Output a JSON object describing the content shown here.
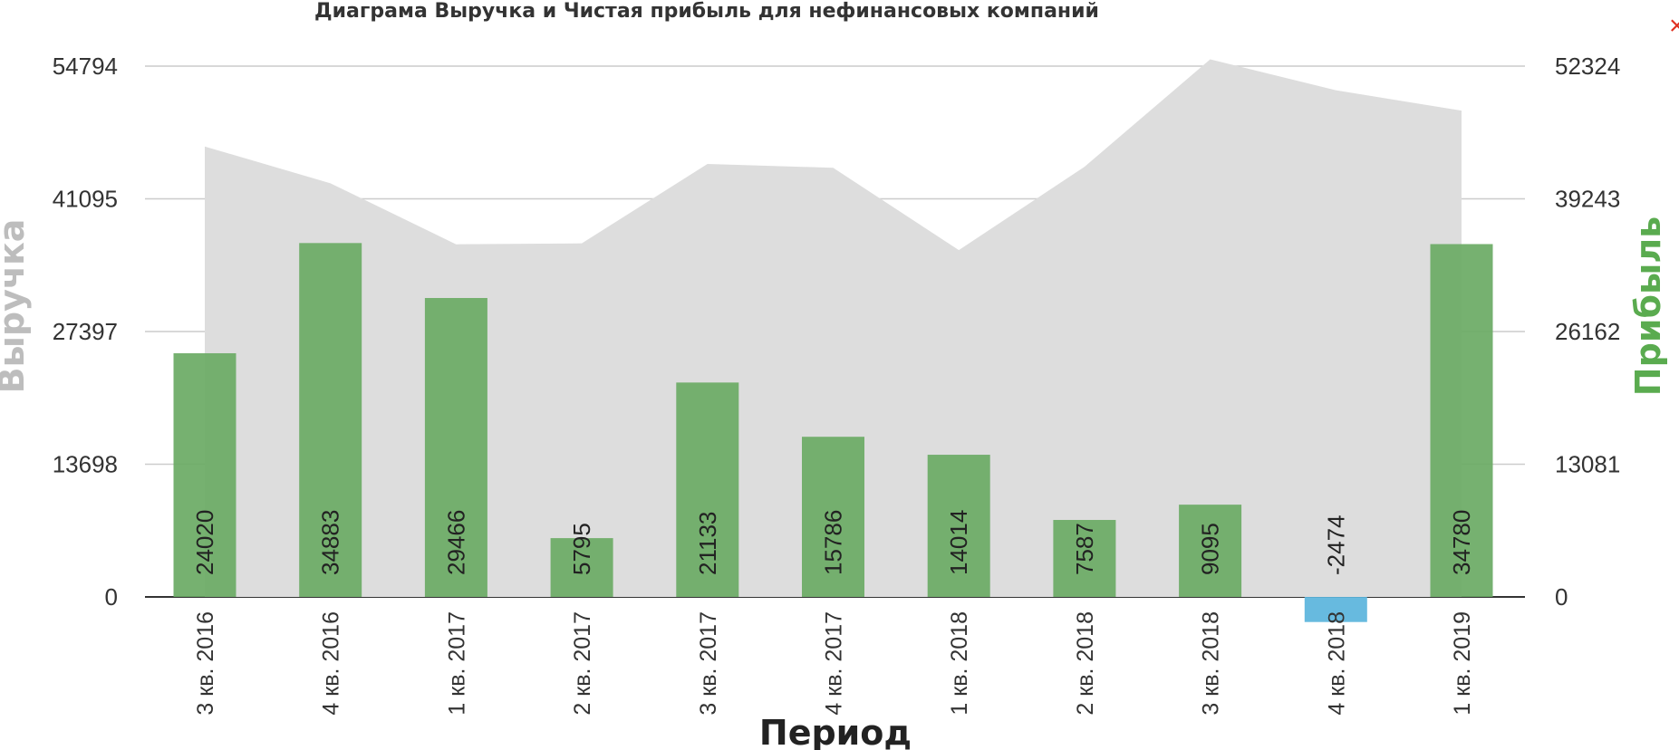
{
  "chart_data": {
    "type": "bar",
    "title": "Диаграма Выручка и Чистая прибыль для нефинансовых компаний",
    "xlabel": "Период",
    "ylabel_left": "Выручка",
    "ylabel_right": "Прибыль",
    "categories": [
      "3 кв. 2016",
      "4 кв. 2016",
      "1 кв. 2017",
      "2 кв. 2017",
      "3 кв. 2017",
      "4 кв. 2017",
      "1 кв. 2018",
      "2 кв. 2018",
      "3 кв. 2018",
      "4 кв. 2018",
      "1 кв. 2019"
    ],
    "left_ticks": [
      "0",
      "13698",
      "27397",
      "41095",
      "54794"
    ],
    "right_ticks": [
      "0",
      "13081",
      "26162",
      "39243",
      "52324"
    ],
    "left_ylim": [
      0,
      54794
    ],
    "right_ylim": [
      0,
      52324
    ],
    "grid": true,
    "series": [
      {
        "type": "area",
        "axis": "left",
        "values": [
          46500,
          42700,
          36400,
          36500,
          44700,
          44300,
          35800,
          44400,
          55500,
          52300,
          50200
        ],
        "color": "#dddddd"
      },
      {
        "type": "bar",
        "axis": "right",
        "values": [
          24020,
          34883,
          29466,
          5795,
          21133,
          15786,
          14014,
          7587,
          9095,
          -2474,
          34780
        ],
        "positive_color": "#6aaa64",
        "negative_color": "#5ab4dc"
      }
    ]
  },
  "ui": {
    "close_glyph": "×"
  }
}
